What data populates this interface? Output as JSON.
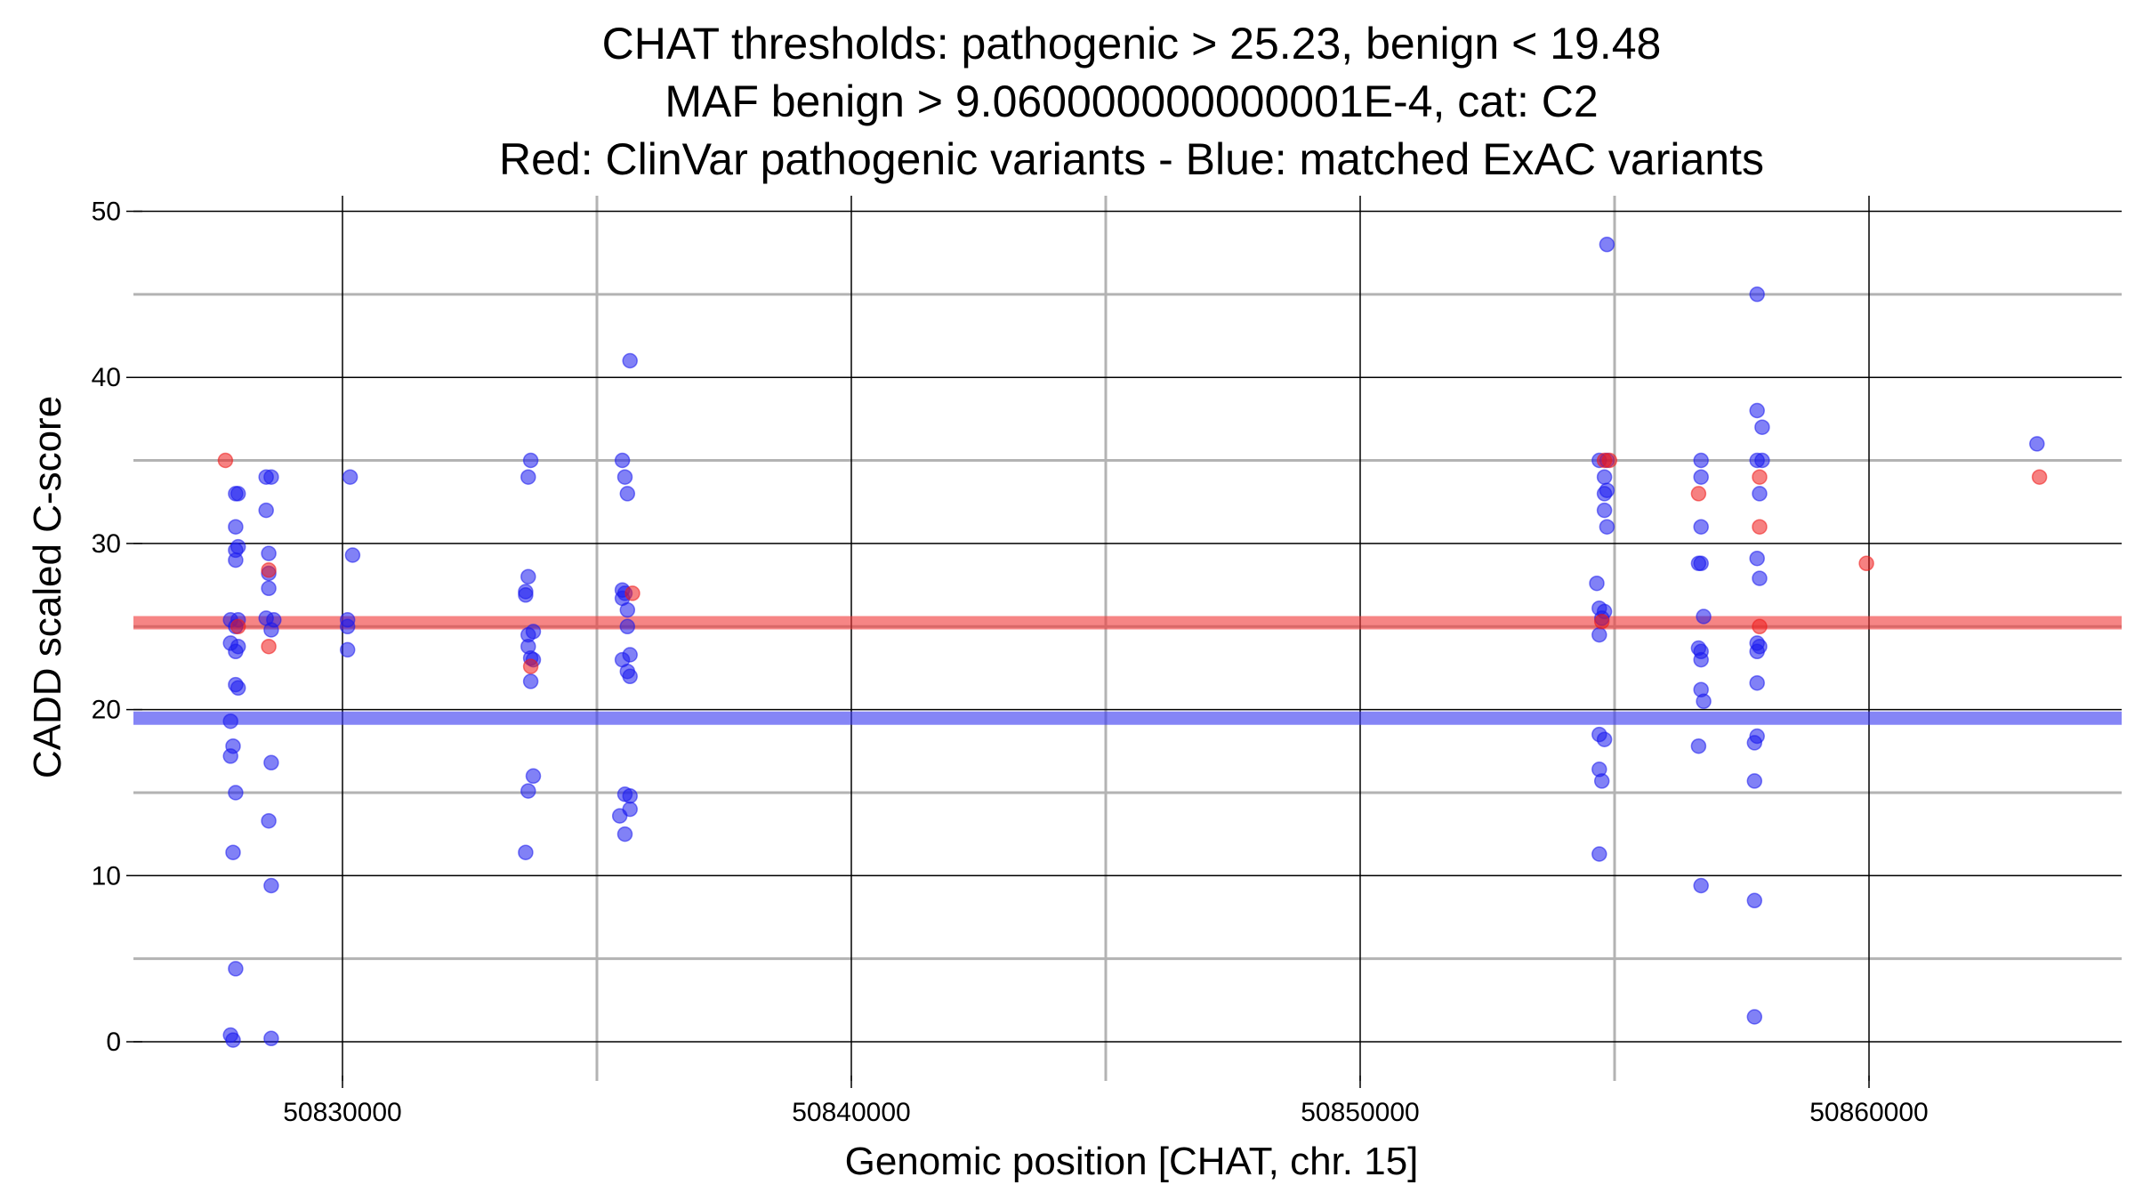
{
  "chart_data": {
    "type": "scatter",
    "title_lines": [
      "CHAT thresholds: pathogenic > 25.23, benign < 19.48",
      "MAF benign > 9.060000000000001E-4, cat: C2",
      "Red: ClinVar pathogenic variants - Blue: matched ExAC variants"
    ],
    "xlabel": "Genomic position [CHAT, chr. 15]",
    "ylabel": "CADD scaled C-score",
    "xlim": [
      50826000,
      50865000
    ],
    "ylim": [
      -2.2,
      52
    ],
    "x_ticks": [
      50830000,
      50840000,
      50850000,
      50860000
    ],
    "x_tick_labels": [
      "50830000",
      "50840000",
      "50850000",
      "50860000"
    ],
    "y_ticks": [
      0,
      10,
      20,
      30,
      40,
      50
    ],
    "y_tick_labels": [
      "0",
      "10",
      "20",
      "30",
      "40",
      "50"
    ],
    "x_minor_gridlines": [
      50835000,
      50845000,
      50855000
    ],
    "y_minor_gridlines": [
      5,
      15,
      25,
      35,
      45
    ],
    "grid": true,
    "thresholds": [
      {
        "y": 25.23,
        "color": "#f03a3a"
      },
      {
        "y": 19.48,
        "color": "#3a3af0"
      }
    ],
    "colors": {
      "blue": "#1a1aee",
      "red": "#ee1a1a",
      "major_grid": "#000000",
      "minor_grid": "#b3b3b3"
    },
    "series": [
      {
        "color_key": "blue",
        "points": [
          [
            50827800,
            0.4
          ],
          [
            50827850,
            0.1
          ],
          [
            50827900,
            4.4
          ],
          [
            50827850,
            11.4
          ],
          [
            50827900,
            15.0
          ],
          [
            50827800,
            17.2
          ],
          [
            50827850,
            17.8
          ],
          [
            50827800,
            19.3
          ],
          [
            50827950,
            21.3
          ],
          [
            50827900,
            21.5
          ],
          [
            50827900,
            23.5
          ],
          [
            50827800,
            24.0
          ],
          [
            50827950,
            23.8
          ],
          [
            50827900,
            25.0
          ],
          [
            50827950,
            25.4
          ],
          [
            50827800,
            25.4
          ],
          [
            50827900,
            29.0
          ],
          [
            50827950,
            29.8
          ],
          [
            50827900,
            29.6
          ],
          [
            50827900,
            31.0
          ],
          [
            50827900,
            33.0
          ],
          [
            50827950,
            33.0
          ],
          [
            50828600,
            0.2
          ],
          [
            50828600,
            9.4
          ],
          [
            50828550,
            13.3
          ],
          [
            50828600,
            16.8
          ],
          [
            50828600,
            24.8
          ],
          [
            50828500,
            25.5
          ],
          [
            50828650,
            25.4
          ],
          [
            50828550,
            27.3
          ],
          [
            50828550,
            28.2
          ],
          [
            50828550,
            29.4
          ],
          [
            50828500,
            32.0
          ],
          [
            50828500,
            34.0
          ],
          [
            50828600,
            34.0
          ],
          [
            50830100,
            23.6
          ],
          [
            50830100,
            25.0
          ],
          [
            50830100,
            25.4
          ],
          [
            50830200,
            29.3
          ],
          [
            50830150,
            34.0
          ],
          [
            50833600,
            11.4
          ],
          [
            50833650,
            15.1
          ],
          [
            50833750,
            16.0
          ],
          [
            50833700,
            21.7
          ],
          [
            50833650,
            23.8
          ],
          [
            50833700,
            23.1
          ],
          [
            50833750,
            23.0
          ],
          [
            50833750,
            24.7
          ],
          [
            50833650,
            24.5
          ],
          [
            50833600,
            26.9
          ],
          [
            50833600,
            27.1
          ],
          [
            50833650,
            28.0
          ],
          [
            50833650,
            34.0
          ],
          [
            50833700,
            35.0
          ],
          [
            50835550,
            12.5
          ],
          [
            50835450,
            13.6
          ],
          [
            50835650,
            14.0
          ],
          [
            50835550,
            14.9
          ],
          [
            50835650,
            14.8
          ],
          [
            50835650,
            22.0
          ],
          [
            50835600,
            22.3
          ],
          [
            50835500,
            23.0
          ],
          [
            50835650,
            23.3
          ],
          [
            50835600,
            25.0
          ],
          [
            50835600,
            26.0
          ],
          [
            50835500,
            26.7
          ],
          [
            50835550,
            27.0
          ],
          [
            50835500,
            27.2
          ],
          [
            50835600,
            33.0
          ],
          [
            50835550,
            34.0
          ],
          [
            50835500,
            35.0
          ],
          [
            50835650,
            41.0
          ],
          [
            50854700,
            11.3
          ],
          [
            50854750,
            15.7
          ],
          [
            50854700,
            16.4
          ],
          [
            50854800,
            18.2
          ],
          [
            50854700,
            18.5
          ],
          [
            50854700,
            24.5
          ],
          [
            50854750,
            25.5
          ],
          [
            50854800,
            25.9
          ],
          [
            50854700,
            26.1
          ],
          [
            50854650,
            27.6
          ],
          [
            50854850,
            31.0
          ],
          [
            50854800,
            32.0
          ],
          [
            50854800,
            33.0
          ],
          [
            50854850,
            33.2
          ],
          [
            50854800,
            34.0
          ],
          [
            50854700,
            35.0
          ],
          [
            50854850,
            35.0
          ],
          [
            50854850,
            48.0
          ],
          [
            50856700,
            9.4
          ],
          [
            50856650,
            17.8
          ],
          [
            50856750,
            20.5
          ],
          [
            50856700,
            21.2
          ],
          [
            50856700,
            23.0
          ],
          [
            50856700,
            23.5
          ],
          [
            50856650,
            23.7
          ],
          [
            50856750,
            25.6
          ],
          [
            50856700,
            28.8
          ],
          [
            50856650,
            28.8
          ],
          [
            50856700,
            31.0
          ],
          [
            50856700,
            34.0
          ],
          [
            50856700,
            35.0
          ],
          [
            50857750,
            1.5
          ],
          [
            50857750,
            8.5
          ],
          [
            50857750,
            15.7
          ],
          [
            50857750,
            18.0
          ],
          [
            50857800,
            18.4
          ],
          [
            50857800,
            21.6
          ],
          [
            50857800,
            23.5
          ],
          [
            50857850,
            23.8
          ],
          [
            50857800,
            24.0
          ],
          [
            50857850,
            27.9
          ],
          [
            50857800,
            29.1
          ],
          [
            50857850,
            33.0
          ],
          [
            50857800,
            35.0
          ],
          [
            50857900,
            35.0
          ],
          [
            50857800,
            38.0
          ],
          [
            50857900,
            37.0
          ],
          [
            50857800,
            45.0
          ],
          [
            50863300,
            36.0
          ]
        ]
      },
      {
        "color_key": "red",
        "points": [
          [
            50827700,
            35.0
          ],
          [
            50827950,
            25.0
          ],
          [
            50828550,
            23.8
          ],
          [
            50828550,
            28.4
          ],
          [
            50833700,
            22.6
          ],
          [
            50835700,
            27.0
          ],
          [
            50854800,
            35.0
          ],
          [
            50854900,
            35.0
          ],
          [
            50854750,
            25.3
          ],
          [
            50856650,
            33.0
          ],
          [
            50857850,
            25.0
          ],
          [
            50857850,
            31.0
          ],
          [
            50857850,
            34.0
          ],
          [
            50859950,
            28.8
          ],
          [
            50863350,
            34.0
          ]
        ]
      }
    ]
  }
}
